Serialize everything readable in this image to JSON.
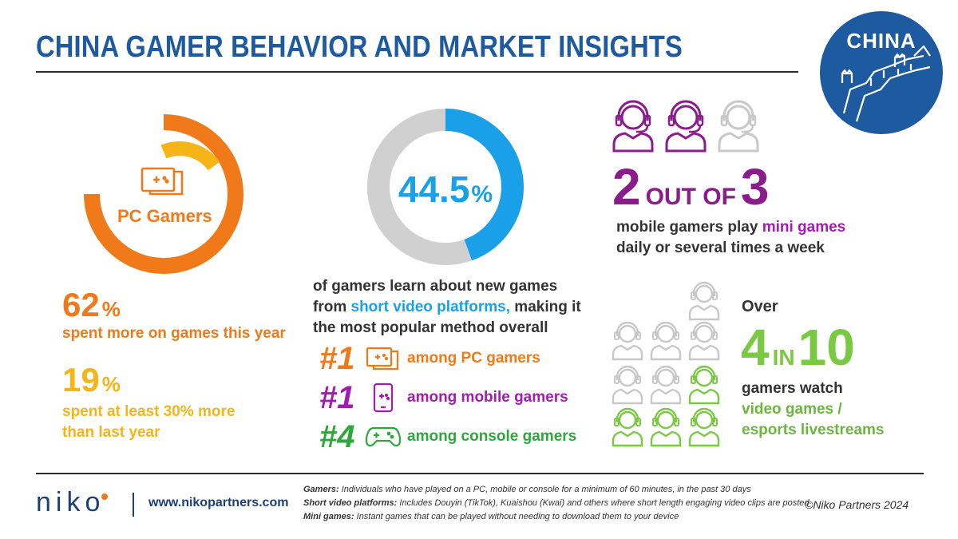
{
  "header": {
    "title": "CHINA GAMER BEHAVIOR AND MARKET INSIGHTS",
    "badge": "CHINA"
  },
  "pc": {
    "label": "PC Gamers",
    "stat1": {
      "value": "62",
      "unit": "%",
      "text": "spent more on games this year"
    },
    "stat2": {
      "value": "19",
      "unit": "%",
      "text_line1": "spent at least 30% more",
      "text_line2": "than last year"
    }
  },
  "short_video": {
    "value": "44.5",
    "unit": "%",
    "fraction": 0.445,
    "desc_line1": "of gamers learn about new games",
    "desc_line2_pre": "from ",
    "desc_line2_hl": "short video platforms,",
    "desc_line2_post": " making it",
    "desc_line3": "the most popular method overall",
    "rankings": [
      {
        "rank": "#1",
        "text": "among PC gamers",
        "icon": "pc-icon"
      },
      {
        "rank": "#1",
        "text": "among mobile gamers",
        "icon": "mobile-icon"
      },
      {
        "rank": "#4",
        "text": "among console gamers",
        "icon": "gamepad-icon"
      }
    ]
  },
  "mini_games": {
    "num": "2",
    "mid": "OUT OF",
    "den": "3",
    "line1_pre": "mobile gamers play ",
    "line1_hl": "mini games",
    "line2": "daily or several times a week",
    "icon": "headset-user-icon"
  },
  "livestream": {
    "over": "Over",
    "num": "4",
    "mid": "IN",
    "den": "10",
    "line1": "gamers watch",
    "line2_hl": "video games /",
    "line3_hl": "esports livestreams"
  },
  "footer": {
    "logo": "niko",
    "url": "www.nikopartners.com",
    "notes": [
      {
        "term": "Gamers:",
        "def": " Individuals who have played on a PC, mobile or console for a minimum of 60 minutes, in the past 30 days"
      },
      {
        "term": "Short video platforms:",
        "def": " Includes Douyin (TikTok), Kuaishou (Kwai) and others where short length engaging video clips are posted"
      },
      {
        "term": "Mini games:",
        "def": " Instant games that can be played without needing to download them to your device"
      }
    ],
    "copyright": "©Niko Partners 2024"
  },
  "colors": {
    "blue": "#1d5aa0",
    "orange": "#f07a1a",
    "yellow": "#f7b416",
    "cyan": "#1aa0e8",
    "magenta": "#a21caf",
    "purple": "#8a1c8c",
    "green": "#7ac943",
    "grey": "#c8c8c8"
  }
}
